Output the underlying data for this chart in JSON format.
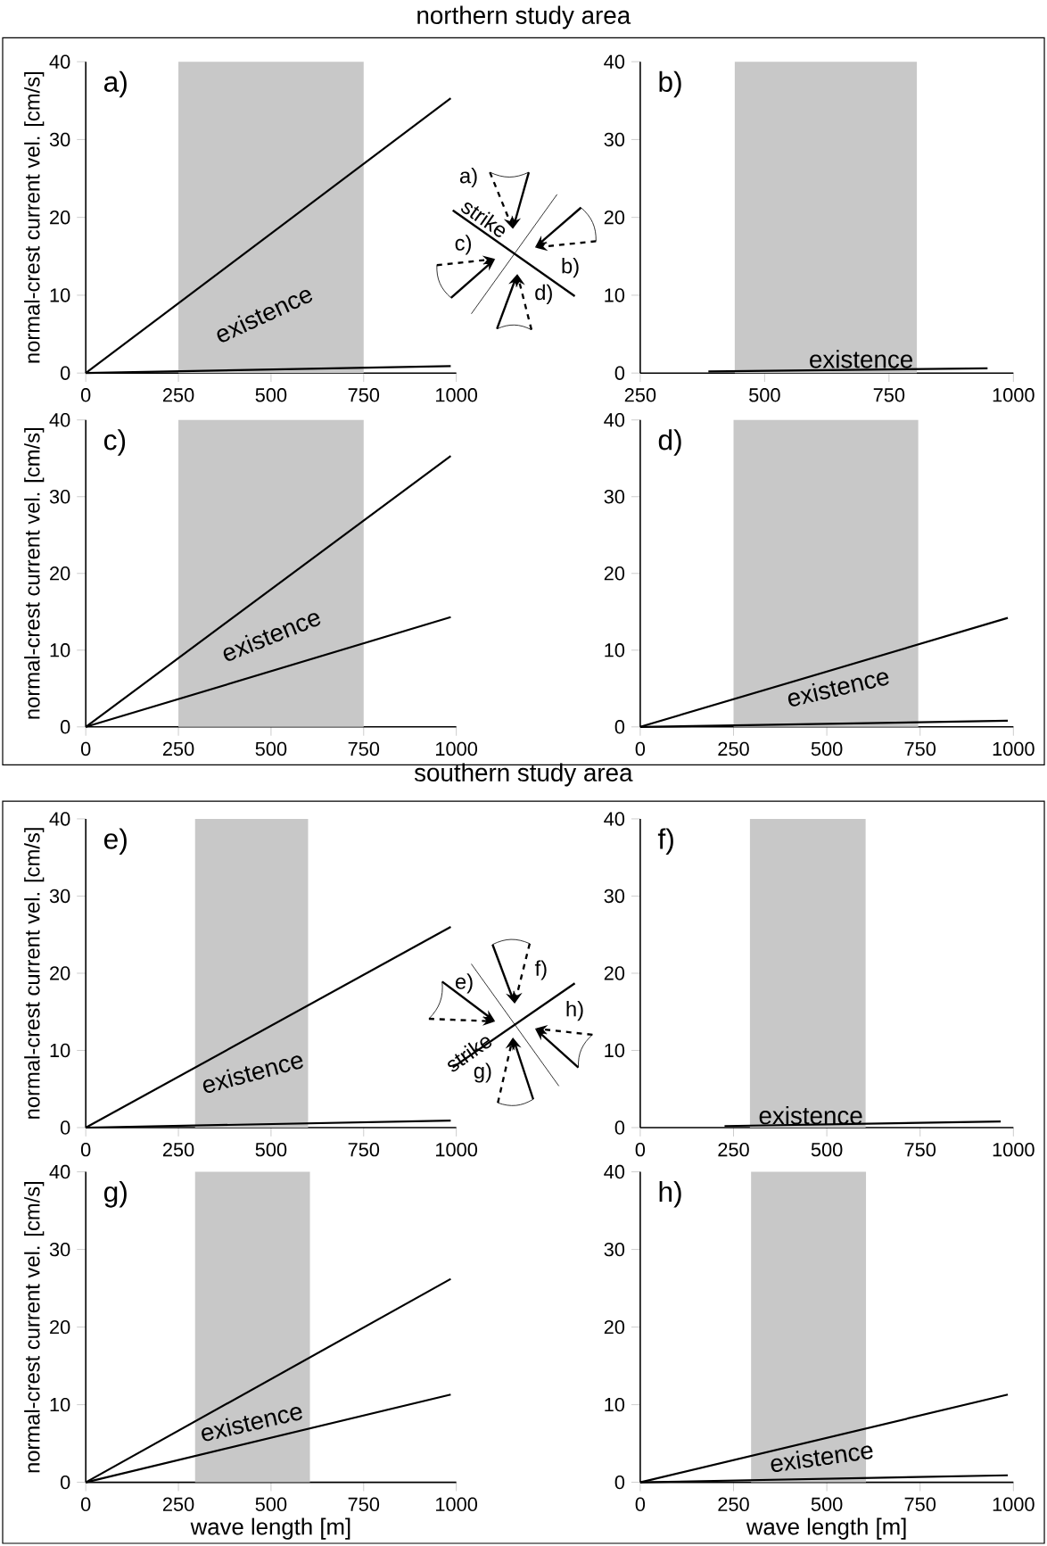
{
  "chart_data": [
    {
      "type": "line",
      "title": "northern study area",
      "ylabel": "normal-crest current vel. [cm/s]",
      "annotations": [
        "a)",
        "existence",
        "a)",
        "strike",
        "c)",
        "b)",
        "d)"
      ],
      "xlim": [
        0,
        1000
      ],
      "ylim": [
        0,
        40
      ],
      "xticks": [
        0,
        250,
        500,
        750,
        1000
      ],
      "yticks": [
        0,
        10,
        20,
        30,
        40
      ],
      "bands": [
        {
          "axis": "x",
          "from": 250,
          "to": 750,
          "color": "#c8c8c8"
        }
      ],
      "series": [
        {
          "color": "#000000",
          "x": [
            0,
            985
          ],
          "values": [
            0,
            35.3
          ]
        },
        {
          "color": "#000000",
          "x": [
            0,
            985
          ],
          "values": [
            0,
            0.9
          ]
        }
      ]
    },
    {
      "type": "line",
      "annotations": [
        "b)",
        "existence"
      ],
      "xlim": [
        250,
        1000
      ],
      "ylim": [
        0,
        40
      ],
      "xticks": [
        250,
        500,
        750,
        1000
      ],
      "yticks": [
        0,
        10,
        20,
        30,
        40
      ],
      "bands": [
        {
          "axis": "x",
          "from": 440,
          "to": 806,
          "color": "#c8c8c8"
        }
      ],
      "series": [
        {
          "color": "#000000",
          "x": [
            387,
            948
          ],
          "values": [
            0.2,
            0.6
          ]
        }
      ]
    },
    {
      "type": "line",
      "ylabel": "normal-crest current vel. [cm/s]",
      "annotations": [
        "c)",
        "existence"
      ],
      "xlim": [
        0,
        1000
      ],
      "ylim": [
        0,
        40
      ],
      "xticks": [
        0,
        250,
        500,
        750,
        1000
      ],
      "yticks": [
        0,
        10,
        20,
        30,
        40
      ],
      "bands": [
        {
          "axis": "x",
          "from": 250,
          "to": 750,
          "color": "#c8c8c8"
        }
      ],
      "series": [
        {
          "color": "#000000",
          "x": [
            0,
            985
          ],
          "values": [
            0,
            35.3
          ]
        },
        {
          "color": "#000000",
          "x": [
            0,
            985
          ],
          "values": [
            0,
            14.3
          ]
        }
      ]
    },
    {
      "type": "line",
      "annotations": [
        "d)",
        "existence"
      ],
      "xlim": [
        0,
        1000
      ],
      "ylim": [
        0,
        40
      ],
      "xticks": [
        0,
        250,
        500,
        750,
        1000
      ],
      "yticks": [
        0,
        10,
        20,
        30,
        40
      ],
      "bands": [
        {
          "axis": "x",
          "from": 250,
          "to": 745,
          "color": "#c8c8c8"
        }
      ],
      "series": [
        {
          "color": "#000000",
          "x": [
            0,
            985
          ],
          "values": [
            0,
            14.2
          ]
        },
        {
          "color": "#000000",
          "x": [
            0,
            985
          ],
          "values": [
            0,
            0.8
          ]
        }
      ]
    },
    {
      "type": "line",
      "title": "southern study area",
      "ylabel": "normal-crest current vel. [cm/s]",
      "annotations": [
        "e)",
        "existence",
        "e)",
        "f)",
        "h)",
        "strike",
        "g)"
      ],
      "xlim": [
        0,
        1000
      ],
      "ylim": [
        0,
        40
      ],
      "xticks": [
        0,
        250,
        500,
        750,
        1000
      ],
      "yticks": [
        0,
        10,
        20,
        30,
        40
      ],
      "bands": [
        {
          "axis": "x",
          "from": 295,
          "to": 600,
          "color": "#c8c8c8"
        }
      ],
      "series": [
        {
          "color": "#000000",
          "x": [
            0,
            985
          ],
          "values": [
            0,
            26
          ]
        },
        {
          "color": "#000000",
          "x": [
            0,
            985
          ],
          "values": [
            0,
            0.9
          ]
        }
      ]
    },
    {
      "type": "line",
      "annotations": [
        "f)",
        "existence"
      ],
      "xlim": [
        0,
        1000
      ],
      "ylim": [
        0,
        40
      ],
      "xticks": [
        0,
        250,
        500,
        750,
        1000
      ],
      "yticks": [
        0,
        10,
        20,
        30,
        40
      ],
      "bands": [
        {
          "axis": "x",
          "from": 294,
          "to": 604,
          "color": "#c8c8c8"
        }
      ],
      "series": [
        {
          "color": "#000000",
          "x": [
            226,
            966
          ],
          "values": [
            0.2,
            0.8
          ]
        }
      ]
    },
    {
      "type": "line",
      "ylabel": "normal-crest current vel. [cm/s]",
      "xlabel": "wave length [m]",
      "annotations": [
        "g)",
        "existence"
      ],
      "xlim": [
        0,
        1000
      ],
      "ylim": [
        0,
        40
      ],
      "xticks": [
        0,
        250,
        500,
        750,
        1000
      ],
      "yticks": [
        0,
        10,
        20,
        30,
        40
      ],
      "bands": [
        {
          "axis": "x",
          "from": 295,
          "to": 605,
          "color": "#c8c8c8"
        }
      ],
      "series": [
        {
          "color": "#000000",
          "x": [
            0,
            985
          ],
          "values": [
            0,
            26.2
          ]
        },
        {
          "color": "#000000",
          "x": [
            0,
            985
          ],
          "values": [
            0,
            11.3
          ]
        }
      ]
    },
    {
      "type": "line",
      "xlabel": "wave length [m]",
      "annotations": [
        "h)",
        "existence"
      ],
      "xlim": [
        0,
        1000
      ],
      "ylim": [
        0,
        40
      ],
      "xticks": [
        0,
        250,
        500,
        750,
        1000
      ],
      "yticks": [
        0,
        10,
        20,
        30,
        40
      ],
      "bands": [
        {
          "axis": "x",
          "from": 297,
          "to": 605,
          "color": "#c8c8c8"
        }
      ],
      "series": [
        {
          "color": "#000000",
          "x": [
            0,
            985
          ],
          "values": [
            0,
            11.3
          ]
        },
        {
          "color": "#000000",
          "x": [
            0,
            985
          ],
          "values": [
            0,
            0.9
          ]
        }
      ]
    }
  ]
}
